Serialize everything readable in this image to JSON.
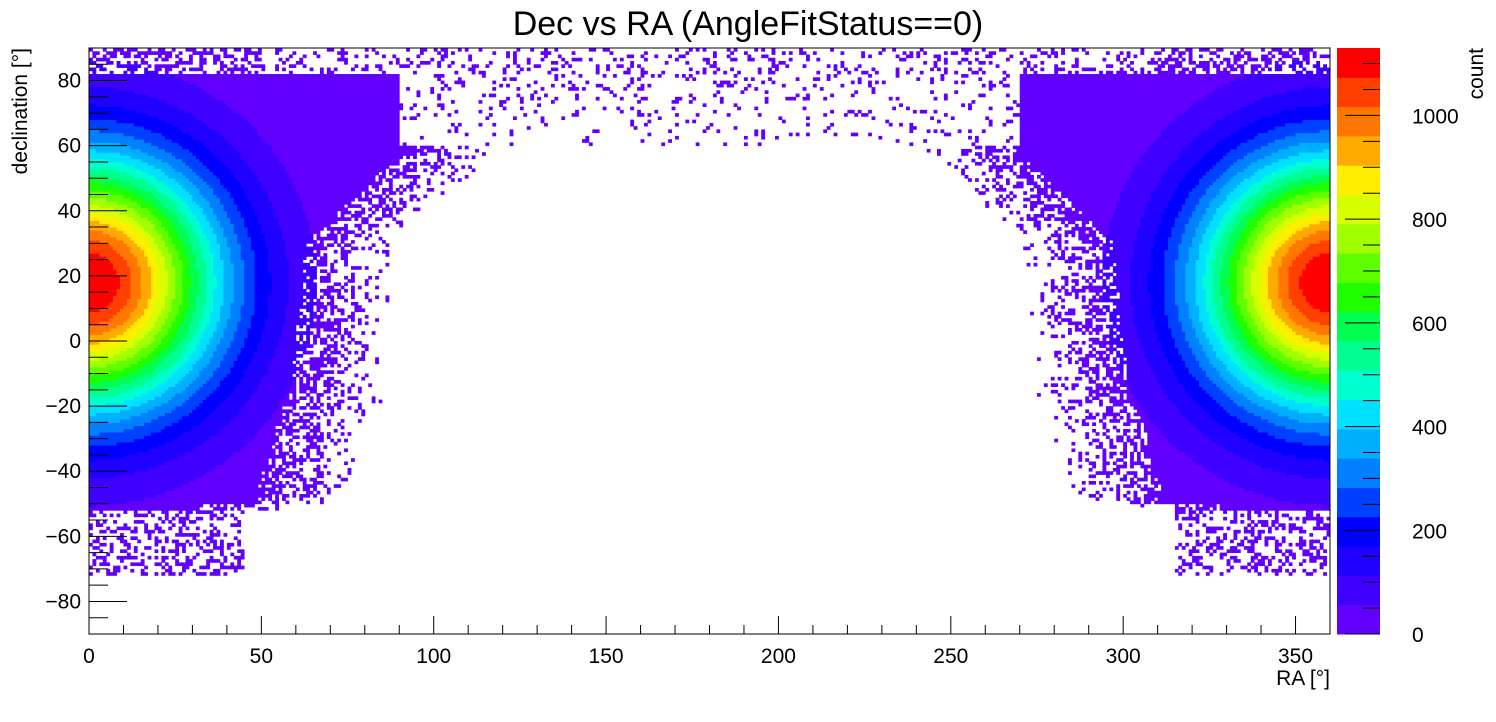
{
  "chart_data": {
    "type": "heatmap",
    "title": "Dec vs RA (AngleFitStatus==0)",
    "xlabel": "RA [°]",
    "ylabel": "declination [°]",
    "zlabel": "count",
    "xlim": [
      0,
      360
    ],
    "ylim": [
      -90,
      90
    ],
    "zlim": [
      0,
      1130
    ],
    "x_ticks": [
      0,
      50,
      100,
      150,
      200,
      250,
      300,
      350
    ],
    "y_ticks": [
      -80,
      -60,
      -40,
      -20,
      0,
      20,
      40,
      60,
      80
    ],
    "z_ticks": [
      0,
      200,
      400,
      600,
      800,
      1000
    ],
    "x_tick_labels": [
      "0",
      "50",
      "100",
      "150",
      "200",
      "250",
      "300",
      "350"
    ],
    "y_tick_labels": [
      "−80",
      "−60",
      "−40",
      "−20",
      "0",
      "20",
      "40",
      "60",
      "80"
    ],
    "z_tick_labels": [
      "0",
      "200",
      "400",
      "600",
      "800",
      "1000"
    ],
    "bins": {
      "nx": 360,
      "ny": 180
    },
    "grid": false,
    "palette": [
      "#6200ff",
      "#4000ff",
      "#2000ff",
      "#0000ff",
      "#0040ff",
      "#0080ff",
      "#00b0ff",
      "#00e0ff",
      "#00ffd0",
      "#00ff90",
      "#00ff50",
      "#20ff00",
      "#60ff00",
      "#a0ff00",
      "#d8ff00",
      "#ffee00",
      "#ffaa00",
      "#ff7700",
      "#ff4000",
      "#ff0000"
    ],
    "hotspots": [
      {
        "ra": 0,
        "dec": 18,
        "peak_count": 1130,
        "sigma_ra": 27,
        "sigma_dec": 28
      },
      {
        "ra": 360,
        "dec": 18,
        "peak_count": 1130,
        "sigma_ra": 27,
        "sigma_dec": 28
      }
    ],
    "coverage_note": "Populated region extends from RA 0 to about 100 and from about 270 to 360; empty central gap near RA 130-250 except sparse counts near dec 70-90"
  }
}
